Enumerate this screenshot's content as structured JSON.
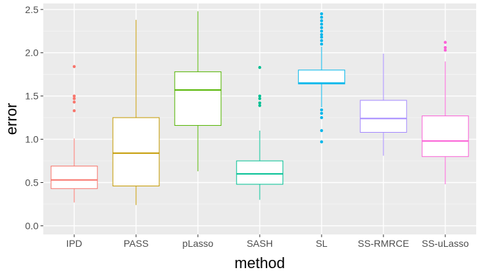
{
  "chart_data": {
    "type": "box",
    "title": "",
    "xlabel": "method",
    "ylabel": "error",
    "ylim": [
      -0.1,
      2.57
    ],
    "yticks": [
      0.0,
      0.5,
      1.0,
      1.5,
      2.0,
      2.5
    ],
    "ytick_labels": [
      "0.0",
      "0.5",
      "1.0",
      "1.5",
      "2.0",
      "2.5"
    ],
    "grid": true,
    "legend": "none",
    "categories": [
      "IPD",
      "PASS",
      "pLasso",
      "SASH",
      "SL",
      "SS-RMRCE",
      "SS-uLasso"
    ],
    "series": [
      {
        "name": "IPD",
        "color": "#F8766D",
        "whisker_low": 0.27,
        "q1": 0.43,
        "median": 0.53,
        "q3": 0.69,
        "whisker_high": 1.01,
        "outliers": [
          1.33,
          1.43,
          1.47,
          1.5,
          1.84
        ]
      },
      {
        "name": "PASS",
        "color": "#C49A00",
        "whisker_low": 0.24,
        "q1": 0.46,
        "median": 0.84,
        "q3": 1.25,
        "whisker_high": 2.38,
        "outliers": []
      },
      {
        "name": "pLasso",
        "color": "#53B400",
        "whisker_low": 0.63,
        "q1": 1.16,
        "median": 1.57,
        "q3": 1.78,
        "whisker_high": 2.48,
        "outliers": []
      },
      {
        "name": "SASH",
        "color": "#00C094",
        "whisker_low": 0.3,
        "q1": 0.48,
        "median": 0.6,
        "q3": 0.75,
        "whisker_high": 1.1,
        "outliers": [
          1.39,
          1.42,
          1.47,
          1.5,
          1.83
        ]
      },
      {
        "name": "SL",
        "color": "#00B6EB",
        "whisker_low": 1.37,
        "q1": 1.64,
        "median": 1.65,
        "q3": 1.8,
        "whisker_high": 2.07,
        "outliers": [
          0.97,
          1.1,
          1.25,
          1.3,
          1.34,
          2.1,
          2.14,
          2.18,
          2.21,
          2.25,
          2.29,
          2.33,
          2.37,
          2.41,
          2.45
        ]
      },
      {
        "name": "SS-RMRCE",
        "color": "#A58AFF",
        "whisker_low": 0.81,
        "q1": 1.08,
        "median": 1.24,
        "q3": 1.45,
        "whisker_high": 1.99,
        "outliers": []
      },
      {
        "name": "SS-uLasso",
        "color": "#FB61D7",
        "whisker_low": 0.48,
        "q1": 0.8,
        "median": 0.98,
        "q3": 1.27,
        "whisker_high": 1.9,
        "outliers": [
          2.03,
          2.06,
          2.12
        ]
      }
    ]
  }
}
